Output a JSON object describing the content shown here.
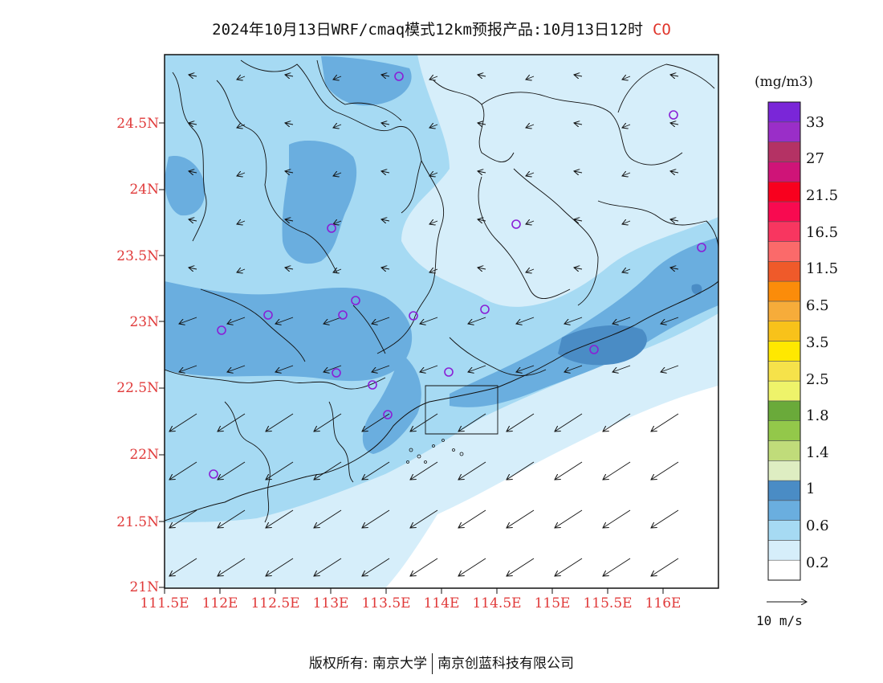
{
  "title": {
    "text": "2024年10月13日WRF/cmaq模式12km预报产品:10月13日12时",
    "species": "CO"
  },
  "colors": {
    "label_red": "#e03a3a",
    "fill_low": "#d6eefa",
    "fill_mid": "#a6daf3",
    "fill_high": "#6aaedf",
    "fill_peak": "#4a8cc5",
    "marker": "#8a1fd6"
  },
  "axes": {
    "lat_ticks": [
      "24.5N",
      "24N",
      "23.5N",
      "23N",
      "22.5N",
      "22N",
      "21.5N",
      "21N"
    ],
    "lon_ticks": [
      "111.5E",
      "112E",
      "112.5E",
      "113E",
      "113.5E",
      "114E",
      "114.5E",
      "115E",
      "115.5E",
      "116E"
    ]
  },
  "colorbar": {
    "unit": "(mg/m3)",
    "labels": [
      "33",
      "27",
      "21.5",
      "16.5",
      "11.5",
      "6.5",
      "3.5",
      "2.5",
      "1.8",
      "1.4",
      "1",
      "0.6",
      "0.2"
    ],
    "swatches": [
      "#ffffff",
      "#d6eefa",
      "#a6daf3",
      "#6aaedf",
      "#4a8cc5",
      "#deedc2",
      "#c0dc7a",
      "#93c84a",
      "#6aaa3a",
      "#eef36a",
      "#f6e24a",
      "#ffe800",
      "#f8c21a",
      "#f6ac3a",
      "#fb8c0a",
      "#ef5a2a",
      "#fb6a6a",
      "#f83660",
      "#f80a50",
      "#f8001e",
      "#cf1478",
      "#b43264",
      "#9a2ec8",
      "#7a26d8"
    ]
  },
  "wind_reference": {
    "label": "10 m/s"
  },
  "footer": {
    "left": "版权所有: 南京大学",
    "right": "南京创蓝科技有限公司"
  }
}
